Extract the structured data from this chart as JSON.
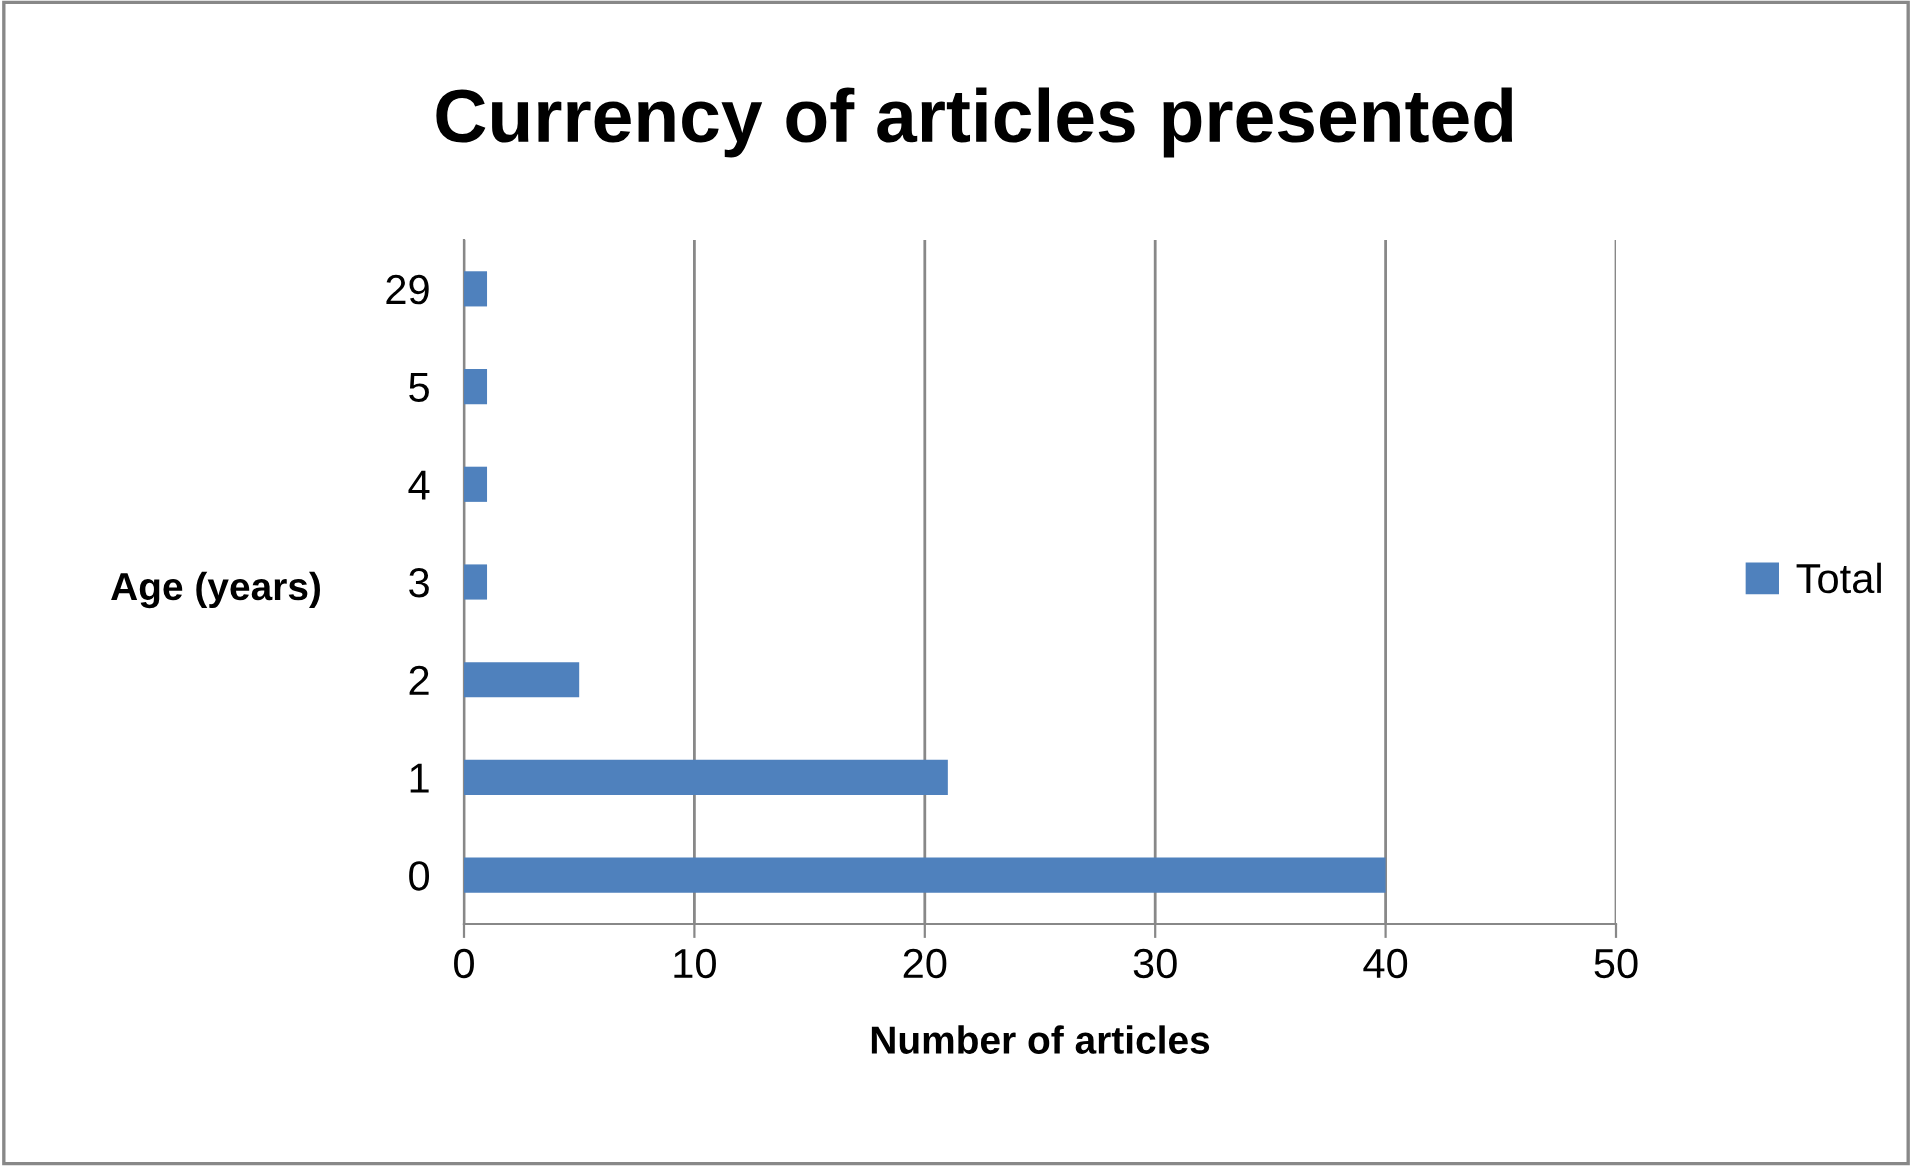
{
  "chart_data": {
    "type": "bar",
    "orientation": "horizontal",
    "title": "Currency of articles presented",
    "xlabel": "Number of articles",
    "ylabel": "Age (years)",
    "categories": [
      "29",
      "5",
      "4",
      "3",
      "2",
      "1",
      "0"
    ],
    "series": [
      {
        "name": "Total",
        "color": "#4f81bd",
        "values": [
          1,
          1,
          1,
          1,
          5,
          21,
          40
        ]
      }
    ],
    "xlim": [
      0,
      50
    ],
    "xticks": [
      0,
      10,
      20,
      30,
      40,
      50
    ],
    "grid": "x",
    "legend": "right"
  }
}
